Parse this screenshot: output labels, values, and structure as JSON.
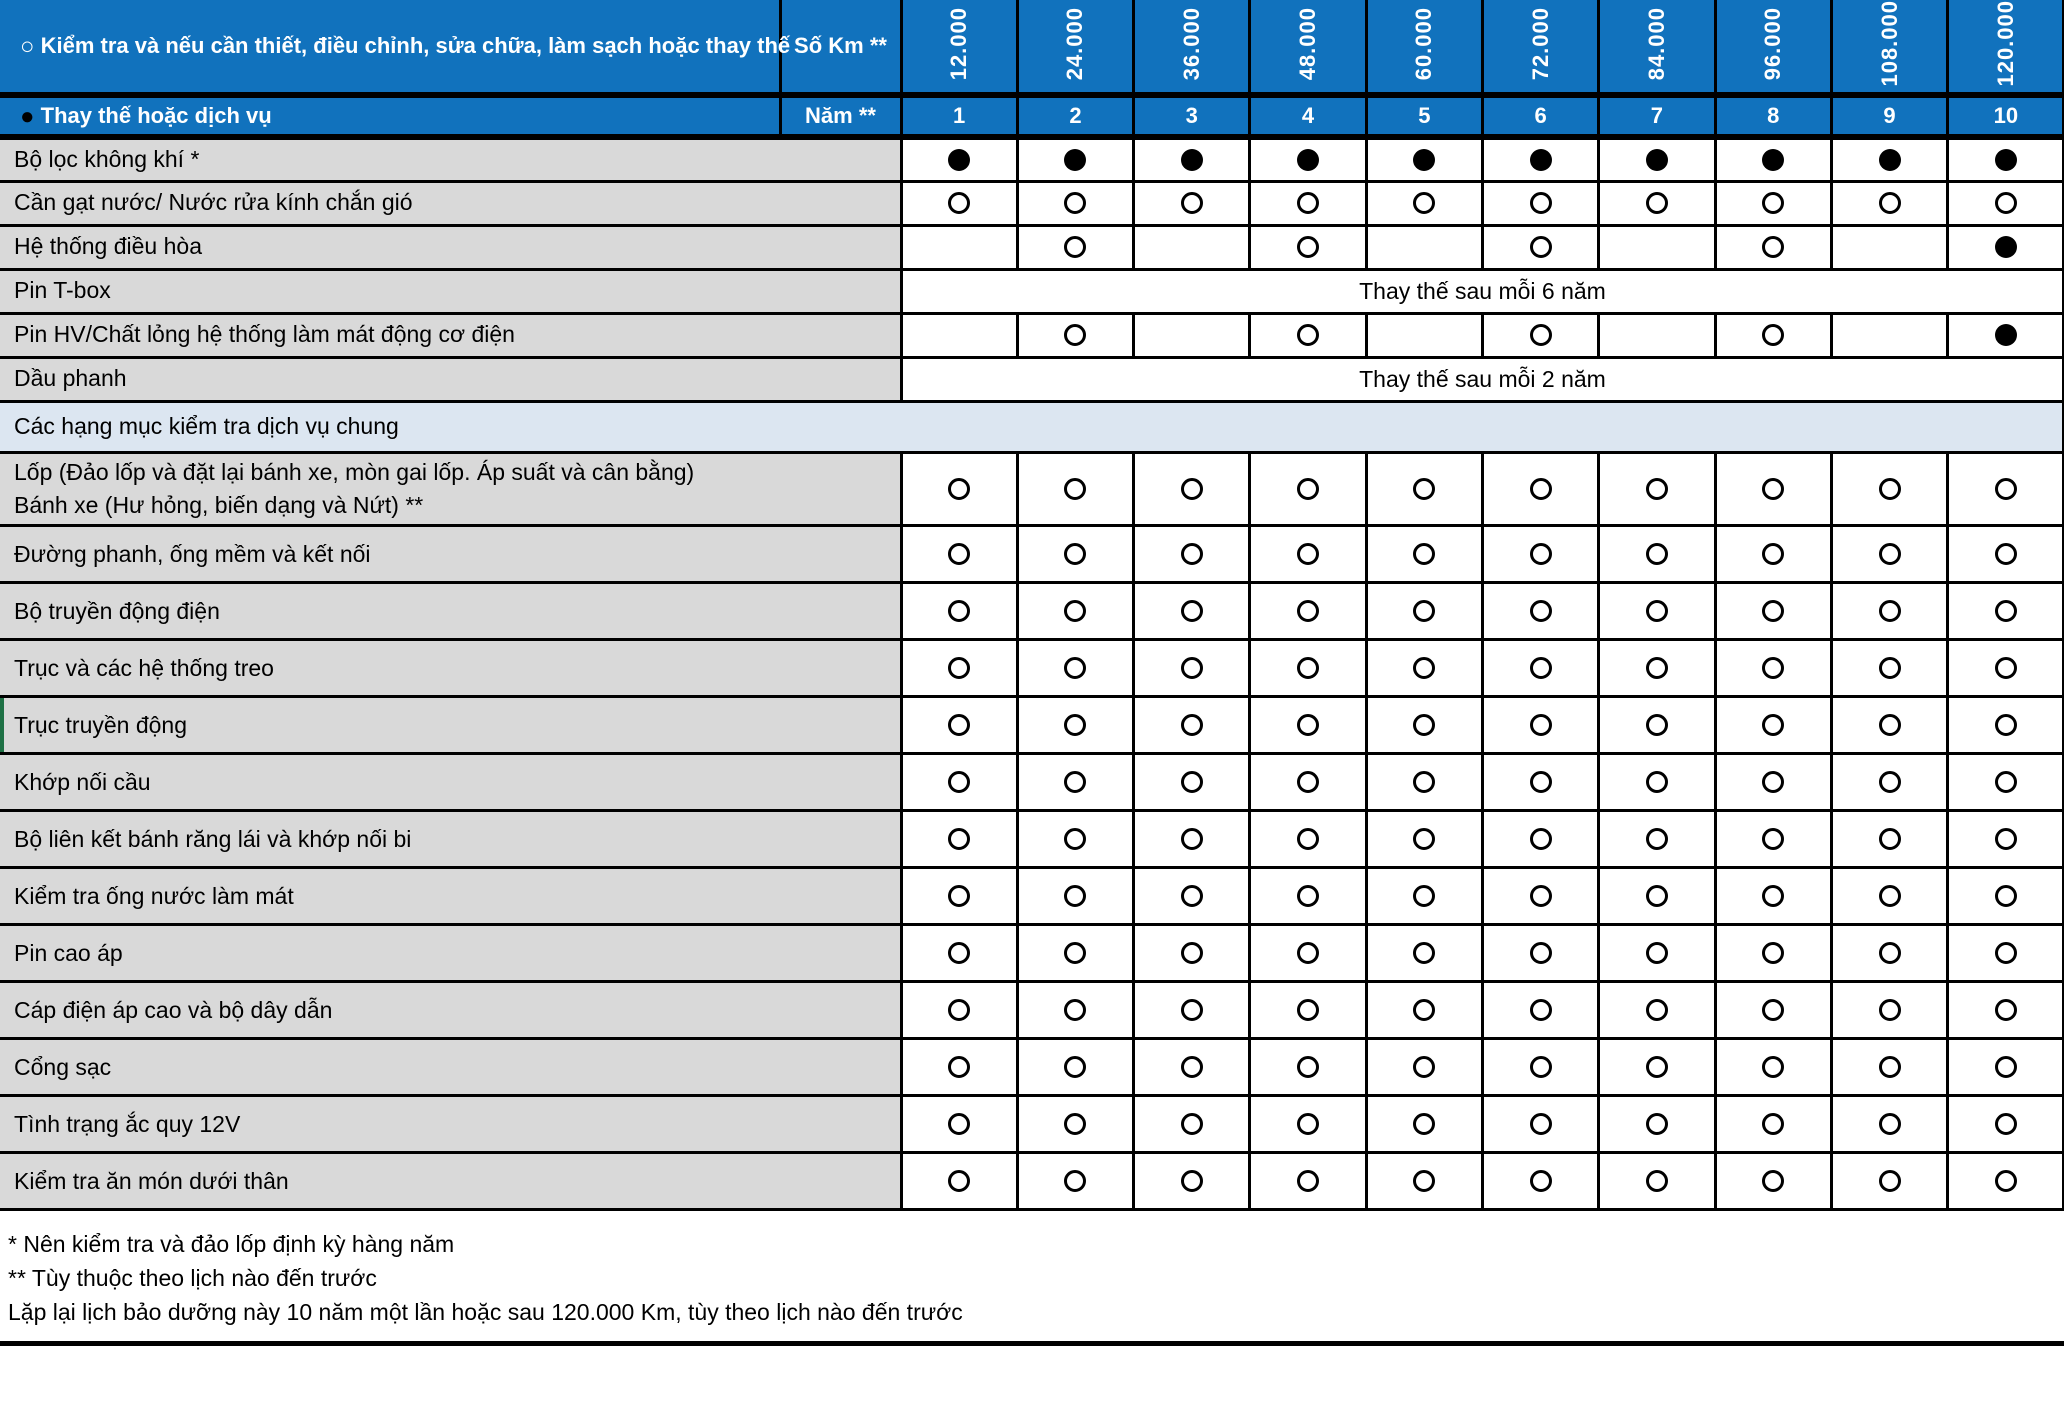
{
  "colors": {
    "header_blue": "#1172BD",
    "label_gray": "#D9D9D9",
    "section_blue": "#DCE6F1",
    "border_black": "#000000"
  },
  "header": {
    "inspect_symbol": "○",
    "inspect_legend": "Kiểm tra và nếu cần thiết, điều chỉnh, sửa chữa, làm sạch hoặc thay thế",
    "replace_symbol": "●",
    "replace_legend": "Thay thế hoặc dịch vụ",
    "km_label": "Số Km **",
    "year_label": "Năm **",
    "km_values": [
      "12.000",
      "24.000",
      "36.000",
      "48.000",
      "60.000",
      "72.000",
      "84.000",
      "96.000",
      "108.000",
      "120.000"
    ],
    "year_values": [
      "1",
      "2",
      "3",
      "4",
      "5",
      "6",
      "7",
      "8",
      "9",
      "10"
    ]
  },
  "table": {
    "rows": [
      {
        "type": "dots",
        "group": "top",
        "label": "Bộ lọc không khí *",
        "cells": [
          "●",
          "●",
          "●",
          "●",
          "●",
          "●",
          "●",
          "●",
          "●",
          "●"
        ]
      },
      {
        "type": "dots",
        "group": "top",
        "label": "Cần gạt nước/ Nước rửa kính chắn gió",
        "cells": [
          "○",
          "○",
          "○",
          "○",
          "○",
          "○",
          "○",
          "○",
          "○",
          "○"
        ]
      },
      {
        "type": "dots",
        "group": "top",
        "label": "Hệ thống điều hòa",
        "cells": [
          "",
          "○",
          "",
          "○",
          "",
          "○",
          "",
          "○",
          "",
          "●"
        ]
      },
      {
        "type": "span",
        "group": "top",
        "label": "Pin T-box",
        "span_text": "Thay thế sau mỗi 6 năm"
      },
      {
        "type": "dots",
        "group": "top",
        "label": "Pin HV/Chất lỏng hệ thống làm mát động cơ điện",
        "cells": [
          "",
          "○",
          "",
          "○",
          "",
          "○",
          "",
          "○",
          "",
          "●"
        ]
      },
      {
        "type": "span",
        "group": "top",
        "label": "Dầu phanh",
        "span_text": "Thay thế sau mỗi 2 năm"
      },
      {
        "type": "section",
        "label": "Các hạng mục kiểm tra dịch vụ chung"
      },
      {
        "type": "dots",
        "group": "general",
        "label": "Lốp (Đảo lốp và đặt lại bánh xe, mòn gai lốp. Áp suất và cân bằng)",
        "label2": "Bánh xe (Hư hỏng, biến dạng và Nứt) **",
        "cells": [
          "○",
          "○",
          "○",
          "○",
          "○",
          "○",
          "○",
          "○",
          "○",
          "○"
        ]
      },
      {
        "type": "dots",
        "group": "general",
        "label": "Đường phanh, ống mềm và kết nối",
        "cells": [
          "○",
          "○",
          "○",
          "○",
          "○",
          "○",
          "○",
          "○",
          "○",
          "○"
        ]
      },
      {
        "type": "dots",
        "group": "general",
        "label": "Bộ truyền động điện",
        "cells": [
          "○",
          "○",
          "○",
          "○",
          "○",
          "○",
          "○",
          "○",
          "○",
          "○"
        ]
      },
      {
        "type": "dots",
        "group": "general",
        "label": "Trục và các hệ thống treo",
        "cells": [
          "○",
          "○",
          "○",
          "○",
          "○",
          "○",
          "○",
          "○",
          "○",
          "○"
        ]
      },
      {
        "type": "dots",
        "group": "general",
        "label": "Trục truyền động",
        "accent": true,
        "cells": [
          "○",
          "○",
          "○",
          "○",
          "○",
          "○",
          "○",
          "○",
          "○",
          "○"
        ]
      },
      {
        "type": "dots",
        "group": "general",
        "label": "Khớp nối cầu",
        "cells": [
          "○",
          "○",
          "○",
          "○",
          "○",
          "○",
          "○",
          "○",
          "○",
          "○"
        ]
      },
      {
        "type": "dots",
        "group": "general",
        "label": "Bộ liên kết bánh răng lái và khớp nối bi",
        "cells": [
          "○",
          "○",
          "○",
          "○",
          "○",
          "○",
          "○",
          "○",
          "○",
          "○"
        ]
      },
      {
        "type": "dots",
        "group": "general",
        "label": "Kiểm tra ống nước làm mát",
        "cells": [
          "○",
          "○",
          "○",
          "○",
          "○",
          "○",
          "○",
          "○",
          "○",
          "○"
        ]
      },
      {
        "type": "dots",
        "group": "general",
        "label": "Pin cao áp",
        "cells": [
          "○",
          "○",
          "○",
          "○",
          "○",
          "○",
          "○",
          "○",
          "○",
          "○"
        ]
      },
      {
        "type": "dots",
        "group": "general",
        "label": "Cáp điện áp cao và bộ dây dẫn",
        "cells": [
          "○",
          "○",
          "○",
          "○",
          "○",
          "○",
          "○",
          "○",
          "○",
          "○"
        ]
      },
      {
        "type": "dots",
        "group": "general",
        "label": "Cổng sạc",
        "cells": [
          "○",
          "○",
          "○",
          "○",
          "○",
          "○",
          "○",
          "○",
          "○",
          "○"
        ]
      },
      {
        "type": "dots",
        "group": "general",
        "label": "Tình trạng ắc quy 12V",
        "cells": [
          "○",
          "○",
          "○",
          "○",
          "○",
          "○",
          "○",
          "○",
          "○",
          "○"
        ]
      },
      {
        "type": "dots",
        "group": "general",
        "label": "Kiểm tra ăn món dưới thân",
        "cells": [
          "○",
          "○",
          "○",
          "○",
          "○",
          "○",
          "○",
          "○",
          "○",
          "○"
        ]
      }
    ]
  },
  "footnotes": [
    "* Nên kiểm tra và đảo lốp định kỳ hàng năm",
    "** Tùy thuộc theo lịch nào đến trước",
    "Lặp lại lịch bảo dưỡng này 10 năm một lần hoặc sau 120.000 Km, tùy theo lịch nào đến trước"
  ]
}
